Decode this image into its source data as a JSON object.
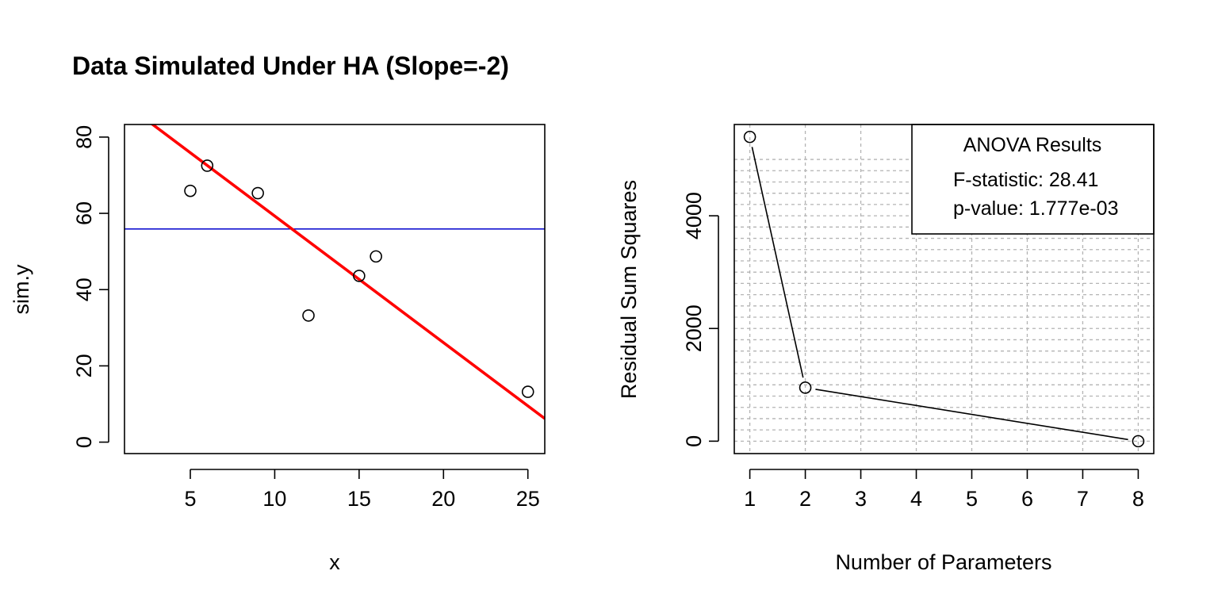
{
  "chart_data": [
    {
      "type": "scatter",
      "title": "Data Simulated Under HA (Slope=-2)",
      "xlabel": "x",
      "ylabel": "sim.y",
      "xlim": [
        1.1,
        26.0
      ],
      "ylim": [
        -3.0,
        83.3
      ],
      "xticks": [
        5,
        10,
        15,
        20,
        25
      ],
      "yticks": [
        0,
        20,
        40,
        60,
        80
      ],
      "points": [
        {
          "x": 5,
          "y": 65.9
        },
        {
          "x": 6,
          "y": 72.5
        },
        {
          "x": 9,
          "y": 65.3
        },
        {
          "x": 12,
          "y": 33.2
        },
        {
          "x": 15,
          "y": 43.6
        },
        {
          "x": 16,
          "y": 48.7
        },
        {
          "x": 25,
          "y": 13.2
        }
      ],
      "fit_line": {
        "intercept": 92.5,
        "slope": -3.32,
        "color": "#ff0000"
      },
      "mean_line": {
        "y": 55.9,
        "color": "#0000cd"
      },
      "grid": false
    },
    {
      "type": "line",
      "xlabel": "Number of Parameters",
      "ylabel": "Residual Sum Squares",
      "xlim": [
        0.72,
        8.28
      ],
      "ylim": [
        -220,
        5620
      ],
      "xticks": [
        1,
        2,
        3,
        4,
        5,
        6,
        7,
        8
      ],
      "yticks": [
        0,
        2000,
        4000
      ],
      "points": [
        {
          "x": 1,
          "y": 5400
        },
        {
          "x": 2,
          "y": 950
        },
        {
          "x": 8,
          "y": 0
        }
      ],
      "grid": true,
      "legend": {
        "placement": "top-right",
        "title": "ANOVA Results",
        "lines": [
          "F-statistic: 28.41",
          "p-value: 1.777e-03"
        ]
      }
    }
  ]
}
